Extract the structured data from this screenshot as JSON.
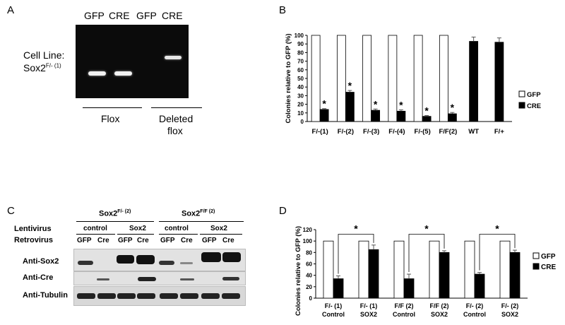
{
  "panels": {
    "a": "A",
    "b": "B",
    "c": "C",
    "d": "D"
  },
  "panel_a": {
    "lane_labels": [
      "GFP",
      "CRE",
      "GFP",
      "CRE"
    ],
    "cell_line_1": "Cell Line:",
    "cell_line_2": "Sox2",
    "cell_line_sup": "F/- (1)",
    "group1": "Flox",
    "group2_line1": "Deleted",
    "group2_line2": "flox"
  },
  "panel_c": {
    "geno1": "Sox2",
    "geno1_sup": "F/- (2)",
    "geno2": "Sox2",
    "geno2_sup": "F/F (2)",
    "row_lenti": "Lentivirus",
    "row_retro": "Retrovirus",
    "lenti_groups": [
      "control",
      "Sox2",
      "control",
      "Sox2"
    ],
    "lanes": [
      "GFP",
      "Cre",
      "GFP",
      "Cre",
      "GFP",
      "Cre",
      "GFP",
      "Cre"
    ],
    "blots": [
      "Anti-Sox2",
      "Anti-Cre",
      "Anti-Tubulin"
    ]
  },
  "chart_data": [
    {
      "type": "bar",
      "ylabel": "Colonies relative to GFP (%)",
      "ylim": [
        0,
        100
      ],
      "yticks": [
        0,
        10,
        20,
        30,
        40,
        50,
        60,
        70,
        80,
        90,
        100
      ],
      "categories": [
        "F/-(1)",
        "F/-(2)",
        "F/-(3)",
        "F/-(4)",
        "F/-(5)",
        "F/F(2)",
        "WT",
        "F/+"
      ],
      "series": [
        {
          "name": "GFP",
          "color": "#ffffff",
          "values": [
            100,
            100,
            100,
            100,
            100,
            100,
            null,
            null
          ]
        },
        {
          "name": "CRE",
          "color": "#000000",
          "values": [
            14,
            34,
            13,
            12,
            6,
            9,
            93,
            92
          ]
        }
      ],
      "errors_cre": [
        1,
        2,
        1.5,
        1.5,
        1,
        1.5,
        5,
        5
      ],
      "significant": [
        "*",
        "*",
        "*",
        "*",
        "*",
        "*",
        "",
        ""
      ],
      "legend": "right"
    },
    {
      "type": "bar",
      "ylabel": "Colonies relative to GFP (%)",
      "ylim": [
        0,
        120
      ],
      "yticks": [
        0,
        20,
        40,
        60,
        80,
        100,
        120
      ],
      "categories": [
        {
          "line1": "F/- (1)",
          "line2": "Control"
        },
        {
          "line1": "F/- (1)",
          "line2": "SOX2"
        },
        {
          "line1": "F/F (2)",
          "line2": "Control"
        },
        {
          "line1": "F/F (2)",
          "line2": "SOX2"
        },
        {
          "line1": "F/- (2)",
          "line2": "Control"
        },
        {
          "line1": "F/- (2)",
          "line2": "SOX2"
        }
      ],
      "series": [
        {
          "name": "GFP",
          "color": "#ffffff",
          "values": [
            100,
            100,
            100,
            100,
            100,
            100
          ]
        },
        {
          "name": "CRE",
          "color": "#000000",
          "values": [
            34,
            85,
            34,
            80,
            42,
            80
          ]
        }
      ],
      "errors_cre": [
        5,
        8,
        8,
        3,
        3,
        4
      ],
      "brackets": [
        {
          "from": 0,
          "to": 1,
          "label": "*"
        },
        {
          "from": 2,
          "to": 3,
          "label": "*"
        },
        {
          "from": 4,
          "to": 5,
          "label": "*"
        }
      ],
      "legend": "right"
    }
  ]
}
